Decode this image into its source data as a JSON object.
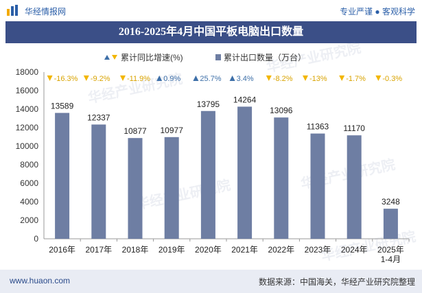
{
  "header": {
    "brand": "华经情报网",
    "tagline": "专业严谨 ● 客观科学"
  },
  "footer": {
    "url": "www.huaon.com",
    "source": "数据来源：中国海关，华经产业研究院整理"
  },
  "watermark": "华经产业研究院",
  "colors": {
    "bar": "#6e7ea3",
    "up": "#3d6fa8",
    "down": "#f2b600",
    "title_bg": "#3b4f87"
  },
  "chart_data": {
    "type": "bar",
    "title": "2016-2025年4月中国平板电脑出口数量",
    "categories": [
      "2016年",
      "2017年",
      "2018年",
      "2019年",
      "2020年",
      "2021年",
      "2022年",
      "2023年",
      "2024年",
      "2025年\n1-4月"
    ],
    "series": [
      {
        "name": "累计出口数量（万台）",
        "type": "bar",
        "values": [
          13589,
          12337,
          10877,
          10977,
          13795,
          14264,
          13096,
          11363,
          11170,
          3248
        ]
      },
      {
        "name": "累计同比增速(%)",
        "type": "annotation",
        "values": [
          -16.3,
          -9.2,
          -11.9,
          0.9,
          25.7,
          3.4,
          -8.2,
          -13,
          -1.7,
          -0.3
        ],
        "labels": [
          "-16.3%",
          "-9.2%",
          "-11.9%",
          "0.9%",
          "25.7%",
          "3.4%",
          "-8.2%",
          "-13%",
          "-1.7%",
          "-0.3%"
        ]
      }
    ],
    "ylim": [
      0,
      18000
    ],
    "yticks": [
      0,
      2000,
      4000,
      6000,
      8000,
      10000,
      12000,
      14000,
      16000,
      18000
    ],
    "legend": {
      "position": "top",
      "growth_label": "累计同比增速(%)",
      "export_label": "累计出口数量（万台）"
    }
  }
}
